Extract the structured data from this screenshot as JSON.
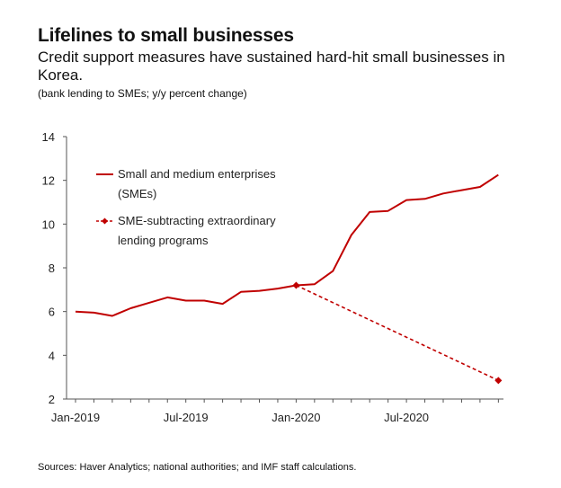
{
  "header": {
    "title": "Lifelines to small businesses",
    "subtitle": "Credit support measures have sustained hard-hit small businesses in Korea.",
    "unit_note": "(bank lending to SMEs; y/y percent change)"
  },
  "footer": {
    "source": "Sources: Haver Analytics; national authorities; and IMF staff calculations."
  },
  "colors": {
    "series": "#c00000",
    "axis": "#555555"
  },
  "chart_data": {
    "type": "line",
    "title": "Lifelines to small businesses",
    "xlabel": "",
    "ylabel": "",
    "ylim": [
      2,
      14
    ],
    "yticks": [
      2,
      4,
      6,
      8,
      10,
      12,
      14
    ],
    "x_months": [
      "2019-01",
      "2019-02",
      "2019-03",
      "2019-04",
      "2019-05",
      "2019-06",
      "2019-07",
      "2019-08",
      "2019-09",
      "2019-10",
      "2019-11",
      "2019-12",
      "2020-01",
      "2020-02",
      "2020-03",
      "2020-04",
      "2020-05",
      "2020-06",
      "2020-07",
      "2020-08",
      "2020-09",
      "2020-10",
      "2020-11",
      "2020-12"
    ],
    "xticks": [
      {
        "index": 0,
        "label": "Jan-2019"
      },
      {
        "index": 6,
        "label": "Jul-2019"
      },
      {
        "index": 12,
        "label": "Jan-2020"
      },
      {
        "index": 18,
        "label": "Jul-2020"
      }
    ],
    "series": [
      {
        "name": "Small and medium enterprises (SMEs)",
        "legend_lines": [
          "Small and medium enterprises",
          "(SMEs)"
        ],
        "style": "solid",
        "values": [
          6.0,
          5.95,
          5.8,
          6.15,
          6.4,
          6.65,
          6.5,
          6.5,
          6.35,
          6.9,
          6.95,
          7.05,
          7.2,
          7.25,
          7.85,
          9.5,
          10.55,
          10.6,
          11.1,
          11.15,
          11.4,
          11.55,
          11.7,
          12.25
        ]
      },
      {
        "name": "SME-subtracting extraordinary lending programs",
        "legend_lines": [
          "SME-subtracting extraordinary",
          "lending programs"
        ],
        "style": "dashed",
        "points": [
          {
            "index": 12,
            "value": 7.2
          },
          {
            "index": 23,
            "value": 2.85
          }
        ]
      }
    ],
    "grid": false,
    "legend_position": "top-left"
  }
}
